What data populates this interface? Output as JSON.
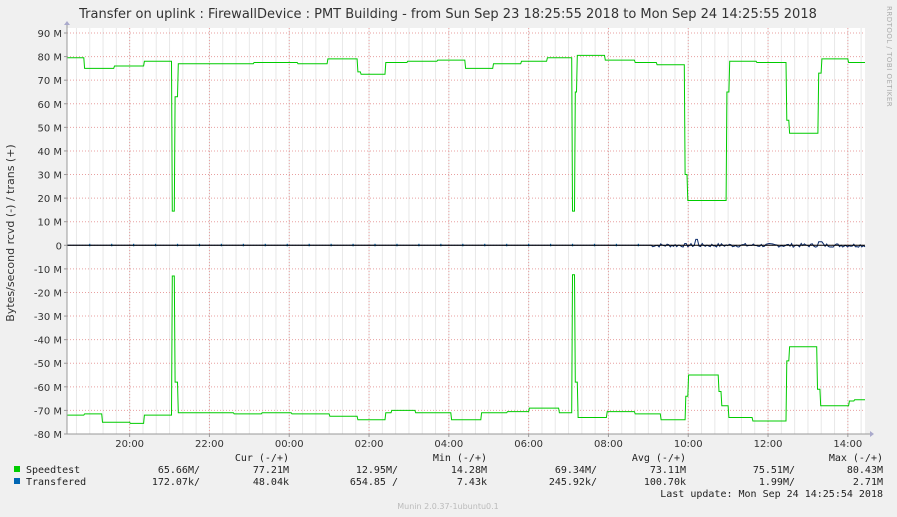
{
  "chart_data": {
    "type": "line",
    "title": "Transfer on uplink : FirewallDevice : PMT Building - from Sun Sep 23 18:25:55 2018 to Mon Sep 24 14:25:55 2018",
    "ylabel": "Bytes/second rcvd (-) / trans (+)",
    "side_label": "RRDTOOL / TOBI OETIKER",
    "ylim": [
      -80,
      90
    ],
    "y_unit": "M",
    "y_ticks": [
      "90 M",
      "80 M",
      "70 M",
      "60 M",
      "50 M",
      "40 M",
      "30 M",
      "20 M",
      "10 M",
      "0",
      "-10 M",
      "-20 M",
      "-30 M",
      "-40 M",
      "-50 M",
      "-60 M",
      "-70 M",
      "-80 M"
    ],
    "y_tick_values": [
      90,
      80,
      70,
      60,
      50,
      40,
      30,
      20,
      10,
      0,
      -10,
      -20,
      -30,
      -40,
      -50,
      -60,
      -70,
      -80
    ],
    "xlim": [
      18.43,
      38.43
    ],
    "x_ticks": [
      "20:00",
      "22:00",
      "00:00",
      "02:00",
      "04:00",
      "06:00",
      "08:00",
      "10:00",
      "12:00",
      "14:00"
    ],
    "x_tick_values": [
      20,
      22,
      24,
      26,
      28,
      30,
      32,
      34,
      36,
      38
    ],
    "grid": true,
    "series": [
      {
        "name": "Speedtest",
        "color": "#00cc00",
        "trans": [
          [
            18.43,
            79.5
          ],
          [
            18.85,
            79.5
          ],
          [
            18.87,
            75
          ],
          [
            19.6,
            75
          ],
          [
            19.62,
            76
          ],
          [
            20.35,
            76
          ],
          [
            20.37,
            78
          ],
          [
            21.05,
            78
          ],
          [
            21.07,
            14.5
          ],
          [
            21.12,
            14.5
          ],
          [
            21.14,
            63
          ],
          [
            21.2,
            63
          ],
          [
            21.22,
            77
          ],
          [
            23.1,
            77
          ],
          [
            23.12,
            77.5
          ],
          [
            24.2,
            77.5
          ],
          [
            24.22,
            77
          ],
          [
            24.95,
            77
          ],
          [
            24.97,
            79
          ],
          [
            25.7,
            79
          ],
          [
            25.72,
            73.5
          ],
          [
            25.78,
            73.5
          ],
          [
            25.8,
            72.5
          ],
          [
            26.4,
            72.5
          ],
          [
            26.42,
            77.5
          ],
          [
            26.95,
            77.5
          ],
          [
            26.97,
            78
          ],
          [
            27.7,
            78
          ],
          [
            27.72,
            78.5
          ],
          [
            28.4,
            78.5
          ],
          [
            28.42,
            75
          ],
          [
            29.1,
            75
          ],
          [
            29.12,
            77
          ],
          [
            29.8,
            77
          ],
          [
            29.82,
            78
          ],
          [
            30.45,
            78
          ],
          [
            30.47,
            79.5
          ],
          [
            31.08,
            79.5
          ],
          [
            31.1,
            14.5
          ],
          [
            31.15,
            14.5
          ],
          [
            31.17,
            65
          ],
          [
            31.2,
            65
          ],
          [
            31.22,
            80.5
          ],
          [
            31.9,
            80.5
          ],
          [
            31.92,
            78.5
          ],
          [
            32.65,
            78.5
          ],
          [
            32.67,
            77.5
          ],
          [
            33.2,
            77.5
          ],
          [
            33.22,
            76.5
          ],
          [
            33.9,
            76.5
          ],
          [
            33.92,
            30
          ],
          [
            33.97,
            30
          ],
          [
            33.99,
            19
          ],
          [
            34.95,
            19
          ],
          [
            34.97,
            65
          ],
          [
            35.02,
            65
          ],
          [
            35.04,
            78
          ],
          [
            35.7,
            78
          ],
          [
            35.72,
            77.5
          ],
          [
            36.45,
            77.5
          ],
          [
            36.47,
            53
          ],
          [
            36.52,
            53
          ],
          [
            36.54,
            47.5
          ],
          [
            37.25,
            47.5
          ],
          [
            37.27,
            73
          ],
          [
            37.33,
            73
          ],
          [
            37.35,
            79
          ],
          [
            38.0,
            79
          ],
          [
            38.02,
            77.5
          ],
          [
            38.43,
            77.5
          ]
        ],
        "recv": [
          [
            18.43,
            -72
          ],
          [
            18.85,
            -72
          ],
          [
            18.87,
            -71.5
          ],
          [
            19.3,
            -71.5
          ],
          [
            19.32,
            -75
          ],
          [
            20.0,
            -75
          ],
          [
            20.02,
            -75.5
          ],
          [
            20.35,
            -75.5
          ],
          [
            20.37,
            -72
          ],
          [
            21.05,
            -72
          ],
          [
            21.07,
            -13
          ],
          [
            21.12,
            -13
          ],
          [
            21.14,
            -58
          ],
          [
            21.2,
            -58
          ],
          [
            21.22,
            -71
          ],
          [
            22.6,
            -71
          ],
          [
            22.62,
            -71.5
          ],
          [
            23.3,
            -71.5
          ],
          [
            23.32,
            -71
          ],
          [
            24.05,
            -71
          ],
          [
            24.07,
            -71.5
          ],
          [
            25.0,
            -71.5
          ],
          [
            25.02,
            -72.5
          ],
          [
            25.7,
            -72.5
          ],
          [
            25.72,
            -74
          ],
          [
            26.4,
            -74
          ],
          [
            26.42,
            -71
          ],
          [
            26.55,
            -71
          ],
          [
            26.57,
            -70
          ],
          [
            27.15,
            -70
          ],
          [
            27.17,
            -71
          ],
          [
            28.05,
            -71
          ],
          [
            28.07,
            -74
          ],
          [
            28.8,
            -74
          ],
          [
            28.82,
            -71
          ],
          [
            29.45,
            -71
          ],
          [
            29.47,
            -70.5
          ],
          [
            30.0,
            -70.5
          ],
          [
            30.02,
            -69
          ],
          [
            30.75,
            -69
          ],
          [
            30.77,
            -71
          ],
          [
            31.08,
            -71
          ],
          [
            31.1,
            -12.5
          ],
          [
            31.15,
            -12.5
          ],
          [
            31.17,
            -58
          ],
          [
            31.22,
            -58
          ],
          [
            31.24,
            -73
          ],
          [
            31.95,
            -73
          ],
          [
            31.97,
            -70.5
          ],
          [
            32.65,
            -70.5
          ],
          [
            32.67,
            -71.5
          ],
          [
            33.3,
            -71.5
          ],
          [
            33.32,
            -74
          ],
          [
            33.92,
            -74
          ],
          [
            33.94,
            -64
          ],
          [
            33.99,
            -64
          ],
          [
            34.01,
            -55
          ],
          [
            34.75,
            -55
          ],
          [
            34.77,
            -62
          ],
          [
            34.82,
            -62
          ],
          [
            34.84,
            -68
          ],
          [
            35.0,
            -68
          ],
          [
            35.02,
            -73
          ],
          [
            35.6,
            -73
          ],
          [
            35.62,
            -74.5
          ],
          [
            36.45,
            -74.5
          ],
          [
            36.47,
            -49
          ],
          [
            36.52,
            -49
          ],
          [
            36.54,
            -43
          ],
          [
            37.22,
            -43
          ],
          [
            37.24,
            -61
          ],
          [
            37.3,
            -61
          ],
          [
            37.32,
            -68
          ],
          [
            38.02,
            -68
          ],
          [
            38.04,
            -66
          ],
          [
            38.15,
            -66
          ],
          [
            38.17,
            -65.5
          ],
          [
            38.43,
            -65.5
          ]
        ]
      },
      {
        "name": "Transfered",
        "color": "#0066b3"
      }
    ]
  },
  "legend": {
    "headers": [
      "Cur (-/+)",
      "Min (-/+)",
      "Avg (-/+)",
      "Max (-/+)"
    ],
    "rows": [
      {
        "name": "Speedtest",
        "color": "#00cc00",
        "cur": "65.66M/",
        "cur2": "77.21M",
        "min": "12.95M/",
        "min2": "14.28M",
        "avg": "69.34M/",
        "avg2": "73.11M",
        "max": "75.51M/",
        "max2": "80.43M"
      },
      {
        "name": "Transfered",
        "color": "#0066b3",
        "cur": "172.07k/",
        "cur2": "48.04k",
        "min": "654.85 /",
        "min2": "7.43k",
        "avg": "245.92k/",
        "avg2": "100.70k",
        "max": "1.99M/",
        "max2": "2.71M"
      }
    ],
    "last_update": "Last update: Mon Sep 24 14:25:54 2018"
  },
  "footer": "Munin 2.0.37-1ubuntu0.1"
}
